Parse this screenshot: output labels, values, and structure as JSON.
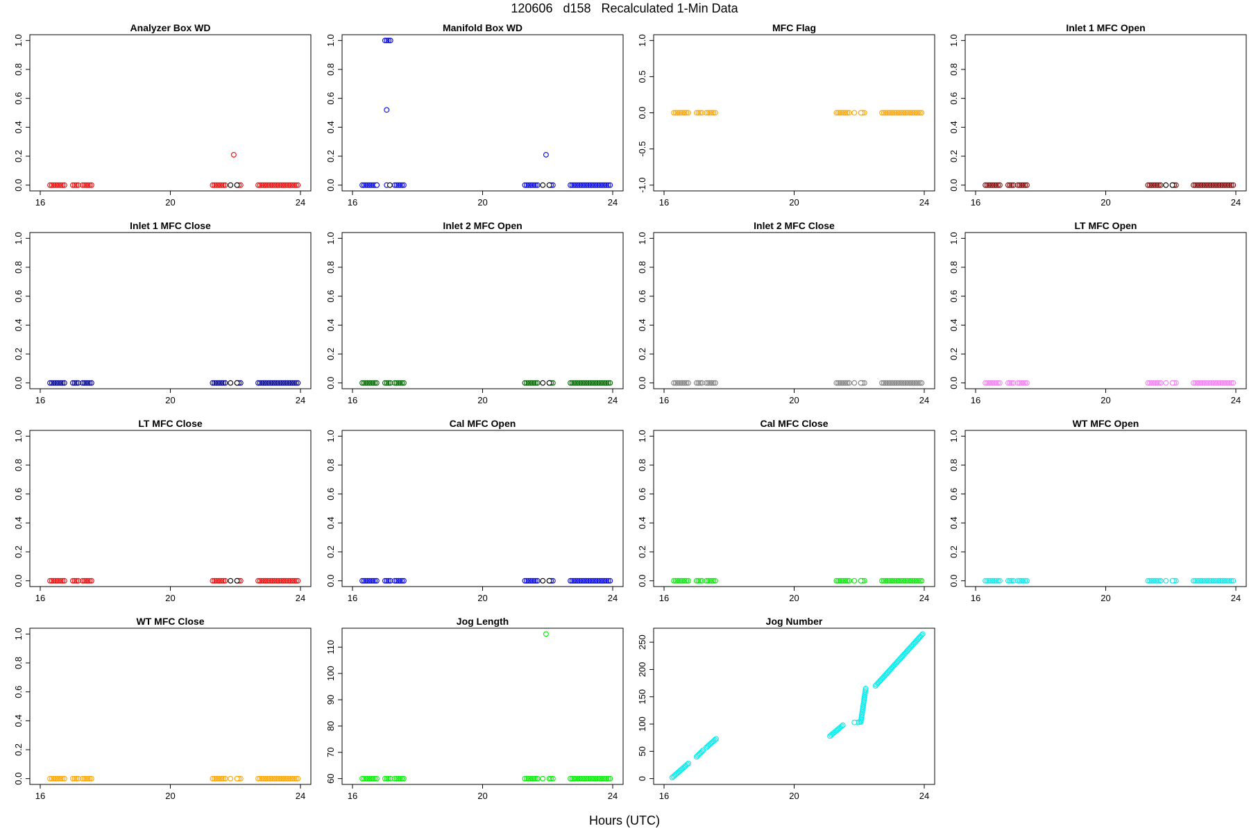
{
  "page": {
    "title": "120606   d158   Recalculated 1-Min Data",
    "xlabel": "Hours (UTC)"
  },
  "chart_data": [
    {
      "type": "scatter",
      "title": "Analyzer Box WD",
      "color": "#ff0000",
      "xlim": [
        16,
        24
      ],
      "ylim": [
        0,
        1
      ],
      "xticks": [
        "16",
        "20",
        "24"
      ],
      "yticks": [
        "0.0",
        "0.2",
        "0.4",
        "0.6",
        "0.8",
        "1.0"
      ],
      "segments": [
        {
          "x0": 16.3,
          "x1": 16.75,
          "y": 0
        },
        {
          "x0": 17.0,
          "x1": 17.2,
          "y": 0
        },
        {
          "x0": 17.3,
          "x1": 17.6,
          "y": 0
        },
        {
          "x0": 21.3,
          "x1": 21.7,
          "y": 0
        },
        {
          "x0": 22.05,
          "x1": 22.2,
          "y": 0
        },
        {
          "x0": 22.7,
          "x1": 23.95,
          "y": 0
        }
      ],
      "points": [
        {
          "x": 21.95,
          "y": 0.21,
          "color": "#ff0000"
        },
        {
          "x": 21.85,
          "y": 0,
          "color": "#000000"
        },
        {
          "x": 22.05,
          "y": 0,
          "color": "#000000"
        }
      ]
    },
    {
      "type": "scatter",
      "title": "Manifold Box WD",
      "color": "#0000ff",
      "xlim": [
        16,
        24
      ],
      "ylim": [
        0,
        1
      ],
      "xticks": [
        "16",
        "20",
        "24"
      ],
      "yticks": [
        "0.0",
        "0.2",
        "0.4",
        "0.6",
        "0.8",
        "1.0"
      ],
      "segments": [
        {
          "x0": 16.3,
          "x1": 16.75,
          "y": 0
        },
        {
          "x0": 17.0,
          "x1": 17.2,
          "y": 1.0
        },
        {
          "x0": 17.3,
          "x1": 17.6,
          "y": 0
        },
        {
          "x0": 21.3,
          "x1": 21.7,
          "y": 0
        },
        {
          "x0": 22.05,
          "x1": 22.2,
          "y": 0
        },
        {
          "x0": 22.7,
          "x1": 23.95,
          "y": 0
        }
      ],
      "points": [
        {
          "x": 17.05,
          "y": 0.52,
          "color": "#0000ff"
        },
        {
          "x": 21.95,
          "y": 0.21,
          "color": "#0000ff"
        },
        {
          "x": 16.75,
          "y": 0,
          "color": "#0000ff"
        },
        {
          "x": 17.05,
          "y": 0,
          "color": "#0000ff"
        },
        {
          "x": 17.15,
          "y": 0,
          "color": "#000000"
        },
        {
          "x": 21.85,
          "y": 0,
          "color": "#000000"
        },
        {
          "x": 22.05,
          "y": 0,
          "color": "#000000"
        }
      ]
    },
    {
      "type": "scatter",
      "title": "MFC Flag",
      "color": "#ffa500",
      "xlim": [
        16,
        24
      ],
      "ylim": [
        -1,
        1
      ],
      "xticks": [
        "16",
        "20",
        "24"
      ],
      "yticks": [
        "-1.0",
        "-0.5",
        "0.0",
        "0.5",
        "1.0"
      ],
      "segments": [
        {
          "x0": 16.3,
          "x1": 16.75,
          "y": 0
        },
        {
          "x0": 17.0,
          "x1": 17.2,
          "y": 0
        },
        {
          "x0": 17.3,
          "x1": 17.6,
          "y": 0
        },
        {
          "x0": 21.3,
          "x1": 21.7,
          "y": 0
        },
        {
          "x0": 22.05,
          "x1": 22.2,
          "y": 0
        },
        {
          "x0": 22.7,
          "x1": 23.95,
          "y": 0
        }
      ],
      "points": [
        {
          "x": 21.85,
          "y": 0,
          "color": "#ffa500"
        },
        {
          "x": 22.05,
          "y": 0,
          "color": "#ffa500"
        }
      ]
    },
    {
      "type": "scatter",
      "title": "Inlet 1 MFC Open",
      "color": "#8b0000",
      "xlim": [
        16,
        24
      ],
      "ylim": [
        0,
        1
      ],
      "xticks": [
        "16",
        "20",
        "24"
      ],
      "yticks": [
        "0.0",
        "0.2",
        "0.4",
        "0.6",
        "0.8",
        "1.0"
      ],
      "segments": [
        {
          "x0": 16.3,
          "x1": 16.75,
          "y": 0
        },
        {
          "x0": 17.0,
          "x1": 17.2,
          "y": 0
        },
        {
          "x0": 17.3,
          "x1": 17.6,
          "y": 0
        },
        {
          "x0": 21.3,
          "x1": 21.7,
          "y": 0
        },
        {
          "x0": 22.05,
          "x1": 22.2,
          "y": 0
        },
        {
          "x0": 22.7,
          "x1": 23.95,
          "y": 0
        }
      ],
      "points": [
        {
          "x": 21.85,
          "y": 0,
          "color": "#000000"
        },
        {
          "x": 22.05,
          "y": 0,
          "color": "#000000"
        }
      ]
    },
    {
      "type": "scatter",
      "title": "Inlet 1 MFC Close",
      "color": "#00008b",
      "xlim": [
        16,
        24
      ],
      "ylim": [
        0,
        1
      ],
      "xticks": [
        "16",
        "20",
        "24"
      ],
      "yticks": [
        "0.0",
        "0.2",
        "0.4",
        "0.6",
        "0.8",
        "1.0"
      ],
      "segments": [
        {
          "x0": 16.3,
          "x1": 16.75,
          "y": 0
        },
        {
          "x0": 17.0,
          "x1": 17.2,
          "y": 0
        },
        {
          "x0": 17.3,
          "x1": 17.6,
          "y": 0
        },
        {
          "x0": 21.3,
          "x1": 21.7,
          "y": 0
        },
        {
          "x0": 22.05,
          "x1": 22.2,
          "y": 0
        },
        {
          "x0": 22.7,
          "x1": 23.95,
          "y": 0
        }
      ],
      "points": [
        {
          "x": 21.85,
          "y": 0,
          "color": "#000000"
        },
        {
          "x": 22.05,
          "y": 0,
          "color": "#000000"
        }
      ]
    },
    {
      "type": "scatter",
      "title": "Inlet 2 MFC Open",
      "color": "#006400",
      "xlim": [
        16,
        24
      ],
      "ylim": [
        0,
        1
      ],
      "xticks": [
        "16",
        "20",
        "24"
      ],
      "yticks": [
        "0.0",
        "0.2",
        "0.4",
        "0.6",
        "0.8",
        "1.0"
      ],
      "segments": [
        {
          "x0": 16.3,
          "x1": 16.75,
          "y": 0
        },
        {
          "x0": 17.0,
          "x1": 17.2,
          "y": 0
        },
        {
          "x0": 17.3,
          "x1": 17.6,
          "y": 0
        },
        {
          "x0": 21.3,
          "x1": 21.7,
          "y": 0
        },
        {
          "x0": 22.05,
          "x1": 22.2,
          "y": 0
        },
        {
          "x0": 22.7,
          "x1": 23.95,
          "y": 0
        }
      ],
      "points": [
        {
          "x": 21.85,
          "y": 0,
          "color": "#000000"
        },
        {
          "x": 22.05,
          "y": 0,
          "color": "#000000"
        }
      ]
    },
    {
      "type": "scatter",
      "title": "Inlet 2 MFC Close",
      "color": "#808080",
      "xlim": [
        16,
        24
      ],
      "ylim": [
        0,
        1
      ],
      "xticks": [
        "16",
        "20",
        "24"
      ],
      "yticks": [
        "0.0",
        "0.2",
        "0.4",
        "0.6",
        "0.8",
        "1.0"
      ],
      "segments": [
        {
          "x0": 16.3,
          "x1": 16.75,
          "y": 0
        },
        {
          "x0": 17.0,
          "x1": 17.2,
          "y": 0
        },
        {
          "x0": 17.3,
          "x1": 17.6,
          "y": 0
        },
        {
          "x0": 21.3,
          "x1": 21.7,
          "y": 0
        },
        {
          "x0": 22.05,
          "x1": 22.2,
          "y": 0
        },
        {
          "x0": 22.7,
          "x1": 23.95,
          "y": 0
        }
      ],
      "points": [
        {
          "x": 21.85,
          "y": 0,
          "color": "#808080"
        },
        {
          "x": 22.05,
          "y": 0,
          "color": "#808080"
        }
      ]
    },
    {
      "type": "scatter",
      "title": "LT MFC Open",
      "color": "#ee82ee",
      "xlim": [
        16,
        24
      ],
      "ylim": [
        0,
        1
      ],
      "xticks": [
        "16",
        "20",
        "24"
      ],
      "yticks": [
        "0.0",
        "0.2",
        "0.4",
        "0.6",
        "0.8",
        "1.0"
      ],
      "segments": [
        {
          "x0": 16.3,
          "x1": 16.75,
          "y": 0
        },
        {
          "x0": 17.0,
          "x1": 17.2,
          "y": 0
        },
        {
          "x0": 17.3,
          "x1": 17.6,
          "y": 0
        },
        {
          "x0": 21.3,
          "x1": 21.7,
          "y": 0
        },
        {
          "x0": 22.05,
          "x1": 22.2,
          "y": 0
        },
        {
          "x0": 22.7,
          "x1": 23.95,
          "y": 0
        }
      ],
      "points": [
        {
          "x": 21.85,
          "y": 0,
          "color": "#ee82ee"
        },
        {
          "x": 22.05,
          "y": 0,
          "color": "#ee82ee"
        }
      ]
    },
    {
      "type": "scatter",
      "title": "LT MFC Close",
      "color": "#ff0000",
      "xlim": [
        16,
        24
      ],
      "ylim": [
        0,
        1
      ],
      "xticks": [
        "16",
        "20",
        "24"
      ],
      "yticks": [
        "0.0",
        "0.2",
        "0.4",
        "0.6",
        "0.8",
        "1.0"
      ],
      "segments": [
        {
          "x0": 16.3,
          "x1": 16.75,
          "y": 0
        },
        {
          "x0": 17.0,
          "x1": 17.2,
          "y": 0
        },
        {
          "x0": 17.3,
          "x1": 17.6,
          "y": 0
        },
        {
          "x0": 21.3,
          "x1": 21.7,
          "y": 0
        },
        {
          "x0": 22.05,
          "x1": 22.2,
          "y": 0
        },
        {
          "x0": 22.7,
          "x1": 23.95,
          "y": 0
        }
      ],
      "points": [
        {
          "x": 21.85,
          "y": 0,
          "color": "#000000"
        },
        {
          "x": 22.05,
          "y": 0,
          "color": "#000000"
        }
      ]
    },
    {
      "type": "scatter",
      "title": "Cal MFC Open",
      "color": "#0000ff",
      "xlim": [
        16,
        24
      ],
      "ylim": [
        0,
        1
      ],
      "xticks": [
        "16",
        "20",
        "24"
      ],
      "yticks": [
        "0.0",
        "0.2",
        "0.4",
        "0.6",
        "0.8",
        "1.0"
      ],
      "segments": [
        {
          "x0": 16.3,
          "x1": 16.75,
          "y": 0
        },
        {
          "x0": 17.0,
          "x1": 17.2,
          "y": 0
        },
        {
          "x0": 17.3,
          "x1": 17.6,
          "y": 0
        },
        {
          "x0": 21.3,
          "x1": 21.7,
          "y": 0
        },
        {
          "x0": 22.05,
          "x1": 22.2,
          "y": 0
        },
        {
          "x0": 22.7,
          "x1": 23.95,
          "y": 0
        }
      ],
      "points": [
        {
          "x": 21.85,
          "y": 0,
          "color": "#000000"
        },
        {
          "x": 22.05,
          "y": 0,
          "color": "#000000"
        }
      ]
    },
    {
      "type": "scatter",
      "title": "Cal MFC Close",
      "color": "#00ee00",
      "xlim": [
        16,
        24
      ],
      "ylim": [
        0,
        1
      ],
      "xticks": [
        "16",
        "20",
        "24"
      ],
      "yticks": [
        "0.0",
        "0.2",
        "0.4",
        "0.6",
        "0.8",
        "1.0"
      ],
      "segments": [
        {
          "x0": 16.3,
          "x1": 16.75,
          "y": 0
        },
        {
          "x0": 17.0,
          "x1": 17.2,
          "y": 0
        },
        {
          "x0": 17.3,
          "x1": 17.6,
          "y": 0
        },
        {
          "x0": 21.3,
          "x1": 21.7,
          "y": 0
        },
        {
          "x0": 22.05,
          "x1": 22.2,
          "y": 0
        },
        {
          "x0": 22.7,
          "x1": 23.95,
          "y": 0
        }
      ],
      "points": [
        {
          "x": 21.85,
          "y": 0,
          "color": "#00ee00"
        },
        {
          "x": 22.05,
          "y": 0,
          "color": "#00ee00"
        }
      ]
    },
    {
      "type": "scatter",
      "title": "WT MFC Open",
      "color": "#00eeee",
      "xlim": [
        16,
        24
      ],
      "ylim": [
        0,
        1
      ],
      "xticks": [
        "16",
        "20",
        "24"
      ],
      "yticks": [
        "0.0",
        "0.2",
        "0.4",
        "0.6",
        "0.8",
        "1.0"
      ],
      "segments": [
        {
          "x0": 16.3,
          "x1": 16.75,
          "y": 0
        },
        {
          "x0": 17.0,
          "x1": 17.2,
          "y": 0
        },
        {
          "x0": 17.3,
          "x1": 17.6,
          "y": 0
        },
        {
          "x0": 21.3,
          "x1": 21.7,
          "y": 0
        },
        {
          "x0": 22.05,
          "x1": 22.2,
          "y": 0
        },
        {
          "x0": 22.7,
          "x1": 23.95,
          "y": 0
        }
      ],
      "points": [
        {
          "x": 21.85,
          "y": 0,
          "color": "#00eeee"
        },
        {
          "x": 22.05,
          "y": 0,
          "color": "#00eeee"
        }
      ]
    },
    {
      "type": "scatter",
      "title": "WT MFC Close",
      "color": "#ffa500",
      "xlim": [
        16,
        24
      ],
      "ylim": [
        0,
        1
      ],
      "xticks": [
        "16",
        "20",
        "24"
      ],
      "yticks": [
        "0.0",
        "0.2",
        "0.4",
        "0.6",
        "0.8",
        "1.0"
      ],
      "segments": [
        {
          "x0": 16.3,
          "x1": 16.75,
          "y": 0
        },
        {
          "x0": 17.0,
          "x1": 17.2,
          "y": 0
        },
        {
          "x0": 17.3,
          "x1": 17.6,
          "y": 0
        },
        {
          "x0": 21.3,
          "x1": 21.7,
          "y": 0
        },
        {
          "x0": 22.05,
          "x1": 22.2,
          "y": 0
        },
        {
          "x0": 22.7,
          "x1": 23.95,
          "y": 0
        }
      ],
      "points": [
        {
          "x": 21.85,
          "y": 0,
          "color": "#ffa500"
        },
        {
          "x": 22.05,
          "y": 0,
          "color": "#ffa500"
        }
      ]
    },
    {
      "type": "scatter",
      "title": "Jog Length",
      "color": "#00ee00",
      "xlim": [
        16,
        24
      ],
      "ylim": [
        60,
        115
      ],
      "xticks": [
        "16",
        "20",
        "24"
      ],
      "yticks": [
        "60",
        "70",
        "80",
        "90",
        "100",
        "110"
      ],
      "segments": [
        {
          "x0": 16.3,
          "x1": 16.75,
          "y": 60
        },
        {
          "x0": 17.0,
          "x1": 17.2,
          "y": 60
        },
        {
          "x0": 17.3,
          "x1": 17.6,
          "y": 60
        },
        {
          "x0": 21.3,
          "x1": 21.7,
          "y": 60
        },
        {
          "x0": 22.05,
          "x1": 22.2,
          "y": 60
        },
        {
          "x0": 22.7,
          "x1": 23.95,
          "y": 60
        }
      ],
      "points": [
        {
          "x": 21.95,
          "y": 115,
          "color": "#00ee00"
        },
        {
          "x": 21.85,
          "y": 60,
          "color": "#00ee00"
        }
      ]
    },
    {
      "type": "scatter",
      "title": "Jog Number",
      "color": "#00eeee",
      "xlim": [
        16,
        24
      ],
      "ylim": [
        0,
        265
      ],
      "xticks": [
        "16",
        "20",
        "24"
      ],
      "yticks": [
        "0",
        "50",
        "100",
        "150",
        "200",
        "250"
      ],
      "lines": [
        {
          "x0": 16.25,
          "y0": 2,
          "x1": 16.75,
          "y1": 28
        },
        {
          "x0": 17.0,
          "y0": 40,
          "x1": 17.2,
          "y1": 52
        },
        {
          "x0": 17.3,
          "y0": 57,
          "x1": 17.6,
          "y1": 73
        },
        {
          "x0": 21.1,
          "y0": 78,
          "x1": 21.5,
          "y1": 98
        },
        {
          "x0": 21.95,
          "y0": 103,
          "x1": 22.05,
          "y1": 104
        },
        {
          "x0": 22.05,
          "y0": 104,
          "x1": 22.2,
          "y1": 165
        },
        {
          "x0": 22.5,
          "y0": 170,
          "x1": 23.95,
          "y1": 265
        }
      ],
      "points": [
        {
          "x": 21.85,
          "y": 103,
          "color": "#00eeee"
        }
      ]
    }
  ]
}
